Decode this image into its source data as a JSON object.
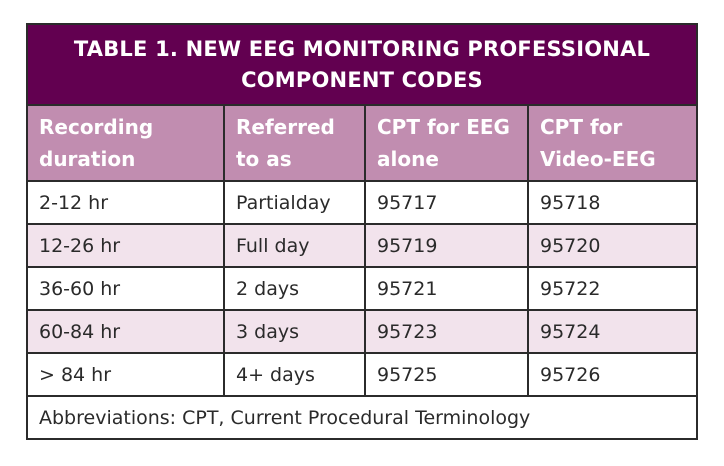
{
  "table": {
    "title_line1": "TABLE 1.  NEW EEG MONITORING PROFESSIONAL",
    "title_line2": "COMPONENT CODES",
    "colors": {
      "title_bg": "#620050",
      "header_bg": "#c18db0",
      "alt_row_bg": "#f2e3ec"
    },
    "headers": [
      "Recording\nduration",
      "Referred\nto as",
      "CPT for EEG\nalone",
      "CPT for\nVideo-EEG"
    ],
    "rows": [
      [
        "2-12 hr",
        "Partialday",
        "95717",
        "95718"
      ],
      [
        "12-26 hr",
        "Full day",
        "95719",
        "95720"
      ],
      [
        "36-60 hr",
        "2 days",
        "95721",
        "95722"
      ],
      [
        "60-84 hr",
        "3 days",
        "95723",
        "95724"
      ],
      [
        "> 84 hr",
        "4+ days",
        "95725",
        "95726"
      ]
    ],
    "footnote": "Abbreviations: CPT, Current Procedural Terminology"
  }
}
